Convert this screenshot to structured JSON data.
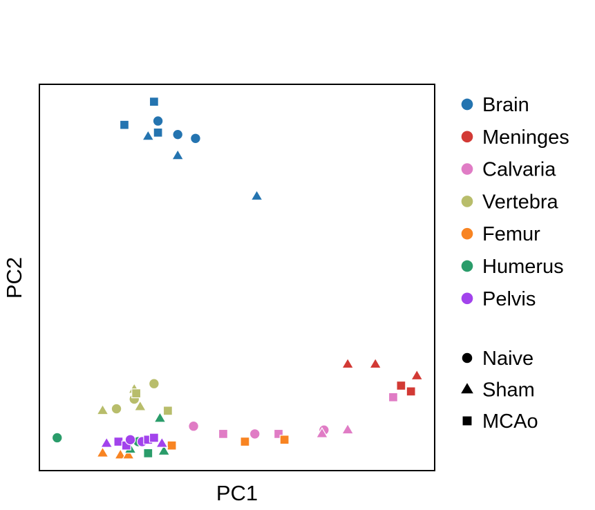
{
  "chart_data": {
    "type": "scatter",
    "title": "",
    "xlabel": "PC1",
    "ylabel": "PC2",
    "xlim": [
      0,
      100
    ],
    "ylim": [
      0,
      100
    ],
    "ticks": "none",
    "grid": false,
    "legend_position": "right",
    "tissues": [
      {
        "name": "Brain",
        "color": "#2474b0"
      },
      {
        "name": "Meninges",
        "color": "#d23a35"
      },
      {
        "name": "Calvaria",
        "color": "#e07cc5"
      },
      {
        "name": "Vertebra",
        "color": "#b8bd6b"
      },
      {
        "name": "Femur",
        "color": "#f88422"
      },
      {
        "name": "Humerus",
        "color": "#2a9c6a"
      },
      {
        "name": "Pelvis",
        "color": "#a243ec"
      }
    ],
    "conditions": [
      {
        "name": "Naive",
        "marker": "circle"
      },
      {
        "name": "Sham",
        "marker": "triangle"
      },
      {
        "name": "MCAo",
        "marker": "square"
      }
    ],
    "points": [
      {
        "tissue": "Brain",
        "condition": "MCAo",
        "x": 29.0,
        "y": 95.5
      },
      {
        "tissue": "Brain",
        "condition": "MCAo",
        "x": 21.5,
        "y": 89.5
      },
      {
        "tissue": "Brain",
        "condition": "MCAo",
        "x": 30.0,
        "y": 87.5
      },
      {
        "tissue": "Brain",
        "condition": "Naive",
        "x": 30.0,
        "y": 90.5
      },
      {
        "tissue": "Brain",
        "condition": "Naive",
        "x": 35.0,
        "y": 87.0
      },
      {
        "tissue": "Brain",
        "condition": "Naive",
        "x": 39.5,
        "y": 86.0
      },
      {
        "tissue": "Brain",
        "condition": "Sham",
        "x": 27.5,
        "y": 86.5
      },
      {
        "tissue": "Brain",
        "condition": "Sham",
        "x": 35.0,
        "y": 81.5
      },
      {
        "tissue": "Brain",
        "condition": "Sham",
        "x": 55.0,
        "y": 71.0
      },
      {
        "tissue": "Meninges",
        "condition": "Sham",
        "x": 78.0,
        "y": 27.5
      },
      {
        "tissue": "Meninges",
        "condition": "Sham",
        "x": 85.0,
        "y": 27.5
      },
      {
        "tissue": "Meninges",
        "condition": "Sham",
        "x": 95.5,
        "y": 24.5
      },
      {
        "tissue": "Meninges",
        "condition": "MCAo",
        "x": 91.5,
        "y": 22.0
      },
      {
        "tissue": "Meninges",
        "condition": "MCAo",
        "x": 94.0,
        "y": 20.5
      },
      {
        "tissue": "Calvaria",
        "condition": "MCAo",
        "x": 89.5,
        "y": 19.0
      },
      {
        "tissue": "Calvaria",
        "condition": "Naive",
        "x": 39.0,
        "y": 11.5
      },
      {
        "tissue": "Calvaria",
        "condition": "MCAo",
        "x": 46.5,
        "y": 9.5
      },
      {
        "tissue": "Calvaria",
        "condition": "Naive",
        "x": 54.5,
        "y": 9.5
      },
      {
        "tissue": "Calvaria",
        "condition": "MCAo",
        "x": 60.5,
        "y": 9.5
      },
      {
        "tissue": "Calvaria",
        "condition": "Naive",
        "x": 72.0,
        "y": 10.5
      },
      {
        "tissue": "Calvaria",
        "condition": "Sham",
        "x": 71.5,
        "y": 9.5
      },
      {
        "tissue": "Calvaria",
        "condition": "Sham",
        "x": 78.0,
        "y": 10.5
      },
      {
        "tissue": "Vertebra",
        "condition": "Naive",
        "x": 29.0,
        "y": 22.5
      },
      {
        "tissue": "Vertebra",
        "condition": "Sham",
        "x": 24.0,
        "y": 21.0
      },
      {
        "tissue": "Vertebra",
        "condition": "Naive",
        "x": 24.0,
        "y": 18.5
      },
      {
        "tissue": "Vertebra",
        "condition": "MCAo",
        "x": 24.5,
        "y": 20.0
      },
      {
        "tissue": "Vertebra",
        "condition": "Sham",
        "x": 25.5,
        "y": 16.5
      },
      {
        "tissue": "Vertebra",
        "condition": "Naive",
        "x": 19.5,
        "y": 16.0
      },
      {
        "tissue": "Vertebra",
        "condition": "Sham",
        "x": 16.0,
        "y": 15.5
      },
      {
        "tissue": "Vertebra",
        "condition": "MCAo",
        "x": 32.5,
        "y": 15.5
      },
      {
        "tissue": "Femur",
        "condition": "Sham",
        "x": 16.0,
        "y": 4.5
      },
      {
        "tissue": "Femur",
        "condition": "Sham",
        "x": 20.5,
        "y": 4.0
      },
      {
        "tissue": "Femur",
        "condition": "Sham",
        "x": 22.5,
        "y": 4.0
      },
      {
        "tissue": "Femur",
        "condition": "MCAo",
        "x": 33.5,
        "y": 6.5
      },
      {
        "tissue": "Femur",
        "condition": "MCAo",
        "x": 52.0,
        "y": 7.5
      },
      {
        "tissue": "Femur",
        "condition": "MCAo",
        "x": 62.0,
        "y": 8.0
      },
      {
        "tissue": "Humerus",
        "condition": "Naive",
        "x": 4.5,
        "y": 8.5
      },
      {
        "tissue": "Humerus",
        "condition": "Sham",
        "x": 30.5,
        "y": 13.5
      },
      {
        "tissue": "Humerus",
        "condition": "Naive",
        "x": 25.0,
        "y": 7.5
      },
      {
        "tissue": "Humerus",
        "condition": "Sham",
        "x": 23.0,
        "y": 5.5
      },
      {
        "tissue": "Humerus",
        "condition": "MCAo",
        "x": 27.5,
        "y": 4.5
      },
      {
        "tissue": "Humerus",
        "condition": "Sham",
        "x": 31.5,
        "y": 5.0
      },
      {
        "tissue": "Humerus",
        "condition": "MCAo",
        "x": 20.0,
        "y": 7.5
      },
      {
        "tissue": "Pelvis",
        "condition": "Sham",
        "x": 17.0,
        "y": 7.0
      },
      {
        "tissue": "Pelvis",
        "condition": "MCAo",
        "x": 20.0,
        "y": 7.5
      },
      {
        "tissue": "Pelvis",
        "condition": "MCAo",
        "x": 22.0,
        "y": 6.5
      },
      {
        "tissue": "Pelvis",
        "condition": "Naive",
        "x": 23.0,
        "y": 8.0
      },
      {
        "tissue": "Pelvis",
        "condition": "Naive",
        "x": 26.0,
        "y": 7.5
      },
      {
        "tissue": "Pelvis",
        "condition": "MCAo",
        "x": 27.5,
        "y": 8.0
      },
      {
        "tissue": "Pelvis",
        "condition": "MCAo",
        "x": 29.0,
        "y": 8.5
      },
      {
        "tissue": "Pelvis",
        "condition": "Sham",
        "x": 31.0,
        "y": 7.0
      }
    ]
  }
}
